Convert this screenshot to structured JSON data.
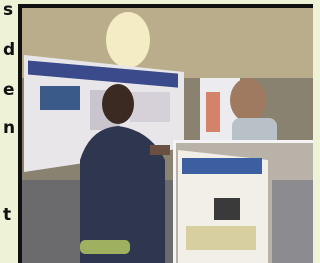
{
  "text_lines": [
    "s",
    "d",
    "e",
    "n",
    "t"
  ]
}
